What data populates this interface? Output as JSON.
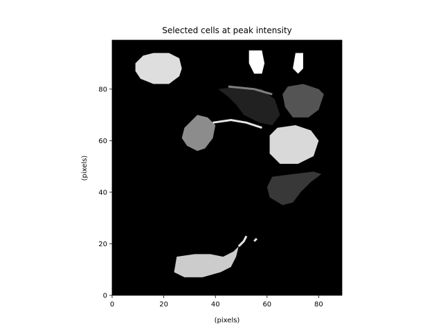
{
  "chart_data": {
    "type": "heatmap",
    "title": "Selected cells at peak intensity",
    "xlabel": "(pixels)",
    "ylabel": "(pixels)",
    "xlim": [
      0,
      89
    ],
    "ylim": [
      0,
      99
    ],
    "xticks": [
      0,
      20,
      40,
      60,
      80
    ],
    "yticks": [
      0,
      20,
      40,
      60,
      80
    ],
    "grid": false,
    "colormap": "gray",
    "background_value": 0,
    "regions": [
      {
        "label": "cell-top-left",
        "intensity": 0.87,
        "polygon": [
          [
            9,
            90
          ],
          [
            12,
            93
          ],
          [
            16,
            94
          ],
          [
            22,
            94
          ],
          [
            26,
            92
          ],
          [
            27,
            88
          ],
          [
            26,
            85
          ],
          [
            22,
            82
          ],
          [
            16,
            82
          ],
          [
            11,
            84
          ],
          [
            9,
            87
          ]
        ]
      },
      {
        "label": "cell-top-right-white",
        "intensity": 1.0,
        "polygon": [
          [
            53,
            95
          ],
          [
            58,
            95
          ],
          [
            59,
            90
          ],
          [
            58,
            86
          ],
          [
            55,
            86
          ],
          [
            53,
            90
          ]
        ]
      },
      {
        "label": "cell-top-right-white-small",
        "intensity": 1.0,
        "polygon": [
          [
            71,
            94
          ],
          [
            74,
            94
          ],
          [
            74,
            88
          ],
          [
            72,
            86
          ],
          [
            70,
            88
          ]
        ]
      },
      {
        "label": "cell-dark-upper",
        "intensity": 0.13,
        "polygon": [
          [
            41,
            80
          ],
          [
            50,
            81
          ],
          [
            58,
            80
          ],
          [
            63,
            76
          ],
          [
            65,
            70
          ],
          [
            62,
            66
          ],
          [
            57,
            67
          ],
          [
            51,
            70
          ],
          [
            48,
            74
          ],
          [
            45,
            77
          ]
        ]
      },
      {
        "label": "cell-ring-upper-right",
        "intensity": 0.33,
        "polygon": [
          [
            68,
            81
          ],
          [
            74,
            82
          ],
          [
            80,
            80
          ],
          [
            82,
            78
          ],
          [
            80,
            72
          ],
          [
            76,
            69
          ],
          [
            70,
            69
          ],
          [
            67,
            73
          ],
          [
            66,
            78
          ]
        ]
      },
      {
        "label": "cell-mid-left",
        "intensity": 0.55,
        "polygon": [
          [
            28,
            65
          ],
          [
            33,
            70
          ],
          [
            37,
            69
          ],
          [
            40,
            66
          ],
          [
            39,
            61
          ],
          [
            36,
            57
          ],
          [
            33,
            56
          ],
          [
            29,
            58
          ],
          [
            27,
            61
          ]
        ]
      },
      {
        "label": "cell-mid-right",
        "intensity": 0.85,
        "polygon": [
          [
            61,
            62
          ],
          [
            64,
            65
          ],
          [
            71,
            66
          ],
          [
            77,
            64
          ],
          [
            80,
            60
          ],
          [
            78,
            54
          ],
          [
            72,
            51
          ],
          [
            65,
            51
          ],
          [
            61,
            55
          ]
        ]
      },
      {
        "label": "cell-mid-lower-right",
        "intensity": 0.22,
        "polygon": [
          [
            60,
            42
          ],
          [
            62,
            46
          ],
          [
            70,
            47
          ],
          [
            78,
            48
          ],
          [
            81,
            47
          ],
          [
            77,
            44
          ],
          [
            73,
            40
          ],
          [
            70,
            36
          ],
          [
            66,
            35
          ],
          [
            61,
            38
          ]
        ]
      },
      {
        "label": "cell-bottom",
        "intensity": 0.8,
        "polygon": [
          [
            25,
            15
          ],
          [
            32,
            16
          ],
          [
            38,
            16
          ],
          [
            43,
            15
          ],
          [
            47,
            17
          ],
          [
            49,
            19
          ],
          [
            48,
            15
          ],
          [
            46,
            11
          ],
          [
            42,
            9
          ],
          [
            35,
            7
          ],
          [
            28,
            7
          ],
          [
            24,
            9
          ]
        ]
      }
    ],
    "streaks": [
      {
        "intensity": 0.9,
        "points": [
          [
            39,
            67
          ],
          [
            46,
            68
          ],
          [
            52,
            67
          ],
          [
            58,
            65
          ]
        ]
      },
      {
        "intensity": 0.5,
        "points": [
          [
            45,
            81
          ],
          [
            55,
            80
          ],
          [
            62,
            78
          ]
        ]
      },
      {
        "intensity": 0.9,
        "points": [
          [
            49,
            19
          ],
          [
            51,
            21
          ],
          [
            52,
            23
          ]
        ]
      },
      {
        "intensity": 0.9,
        "points": [
          [
            55,
            21
          ],
          [
            56,
            22
          ]
        ]
      }
    ]
  }
}
